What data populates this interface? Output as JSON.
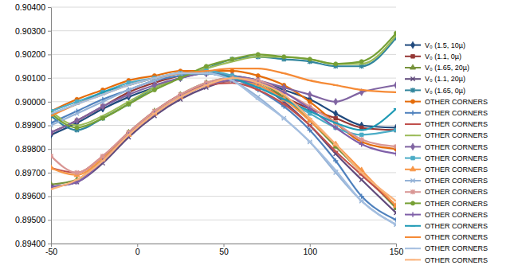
{
  "chart_data": {
    "type": "line",
    "x": [
      -50,
      -35,
      -20,
      -5,
      10,
      25,
      40,
      55,
      70,
      85,
      100,
      115,
      130,
      150
    ],
    "xlim": [
      -50,
      150
    ],
    "xticks": [
      -50,
      0,
      50,
      100,
      150
    ],
    "ylim": [
      0.894,
      0.904
    ],
    "yticks": [
      {
        "value": 0.894,
        "label": "0.89400"
      },
      {
        "value": 0.895,
        "label": "0.89500"
      },
      {
        "value": 0.896,
        "label": "0.89600"
      },
      {
        "value": 0.897,
        "label": "0.89700"
      },
      {
        "value": 0.898,
        "label": "0.89800"
      },
      {
        "value": 0.899,
        "label": "0.89900"
      },
      {
        "value": 0.9,
        "label": "0.90000"
      },
      {
        "value": 0.901,
        "label": "0.90100"
      },
      {
        "value": 0.902,
        "label": "0.90200"
      },
      {
        "value": 0.903,
        "label": "0.90300"
      },
      {
        "value": 0.904,
        "label": "0.90400"
      }
    ],
    "grid": true,
    "legend": "right",
    "series": [
      {
        "name": "V₀ (1.5, 10µ)",
        "color": "#1f497d",
        "marker": "diamond",
        "values": [
          0.8986,
          0.8991,
          0.8997,
          0.9002,
          0.9006,
          0.901,
          0.9012,
          0.9011,
          0.9009,
          0.9005,
          0.9001,
          0.8995,
          0.899,
          0.8989
        ]
      },
      {
        "name": "V₀ (1.1, 0µ)",
        "color": "#953735",
        "marker": "square",
        "values": [
          0.8987,
          0.8992,
          0.8998,
          0.9004,
          0.9008,
          0.9011,
          0.9012,
          0.901,
          0.9007,
          0.9002,
          0.8997,
          0.8993,
          0.8989,
          0.8988
        ]
      },
      {
        "name": "V₀ (1.65, 20µ)",
        "color": "#77933c",
        "marker": "triangle",
        "values": [
          0.8965,
          0.8967,
          0.8976,
          0.8987,
          0.8996,
          0.9003,
          0.9008,
          0.901,
          0.9008,
          0.9002,
          0.8992,
          0.8981,
          0.897,
          0.8955
        ]
      },
      {
        "name": "V₀ (1.1, 20µ)",
        "color": "#604a7b",
        "marker": "x",
        "values": [
          0.8964,
          0.8966,
          0.8974,
          0.8985,
          0.8994,
          0.9001,
          0.9006,
          0.9009,
          0.9007,
          0.9,
          0.899,
          0.8978,
          0.8967,
          0.8953
        ]
      },
      {
        "name": "V₀ (1.65, 0µ)",
        "color": "#31859c",
        "marker": "asterisk",
        "values": [
          0.8994,
          0.8988,
          0.8993,
          0.8999,
          0.9006,
          0.901,
          0.9014,
          0.9018,
          0.9019,
          0.9018,
          0.9017,
          0.9015,
          0.9015,
          0.9027
        ]
      },
      {
        "name": "OTHER CORNERS",
        "color": "#e46c0a",
        "marker": "circle",
        "values": [
          0.8996,
          0.9001,
          0.9005,
          0.9009,
          0.9011,
          0.9013,
          0.9013,
          0.9013,
          0.9011,
          0.9007,
          0.9,
          0.8991,
          0.8983,
          0.898
        ]
      },
      {
        "name": "OTHER CORNERS",
        "color": "#4f81bd",
        "marker": "plus",
        "values": [
          0.8991,
          0.8996,
          0.9001,
          0.9005,
          0.9009,
          0.9011,
          0.9012,
          0.901,
          0.9005,
          0.8998,
          0.8988,
          0.8975,
          0.896,
          0.895
        ]
      },
      {
        "name": "OTHER CORNERS",
        "color": "#c0504d",
        "marker": "dash",
        "values": [
          0.8972,
          0.897,
          0.8977,
          0.8987,
          0.8996,
          0.9003,
          0.9007,
          0.9008,
          0.9005,
          0.8999,
          0.899,
          0.8979,
          0.8969,
          0.8956
        ]
      },
      {
        "name": "OTHER CORNERS",
        "color": "#9bbb59",
        "marker": "dash",
        "values": [
          0.8996,
          0.899,
          0.8994,
          0.9,
          0.9006,
          0.901,
          0.9014,
          0.9017,
          0.9019,
          0.9019,
          0.9018,
          0.9016,
          0.9016,
          0.9028
        ]
      },
      {
        "name": "OTHER CORNERS",
        "color": "#8064a2",
        "marker": "diamond",
        "values": [
          0.8987,
          0.8992,
          0.8998,
          0.9003,
          0.9007,
          0.901,
          0.9012,
          0.9011,
          0.9009,
          0.9006,
          0.9003,
          0.9,
          0.9004,
          0.9007
        ]
      },
      {
        "name": "OTHER CORNERS",
        "color": "#4bacc6",
        "marker": "square",
        "values": [
          0.8996,
          0.9,
          0.9004,
          0.9008,
          0.901,
          0.9012,
          0.9013,
          0.9011,
          0.9007,
          0.9001,
          0.8995,
          0.8989,
          0.8986,
          0.8988
        ]
      },
      {
        "name": "OTHER CORNERS",
        "color": "#f79646",
        "marker": "triangle",
        "values": [
          0.8972,
          0.8969,
          0.8976,
          0.8986,
          0.8995,
          0.9002,
          0.9007,
          0.9009,
          0.9007,
          0.9001,
          0.8992,
          0.8982,
          0.8971,
          0.8956
        ]
      },
      {
        "name": "OTHER CORNERS",
        "color": "#95b3d7",
        "marker": "x",
        "values": [
          0.899,
          0.8995,
          0.9,
          0.9005,
          0.9009,
          0.9012,
          0.9012,
          0.9009,
          0.9002,
          0.8993,
          0.8983,
          0.897,
          0.8958,
          0.8948
        ]
      },
      {
        "name": "OTHER CORNERS",
        "color": "#d99694",
        "marker": "asterisk",
        "values": [
          0.8977,
          0.897,
          0.8977,
          0.8987,
          0.8996,
          0.9003,
          0.9008,
          0.901,
          0.9009,
          0.9004,
          0.8998,
          0.8991,
          0.8984,
          0.8981
        ]
      },
      {
        "name": "OTHER CORNERS",
        "color": "#76a035",
        "marker": "circle",
        "values": [
          0.8995,
          0.8989,
          0.8993,
          0.8999,
          0.9005,
          0.901,
          0.9015,
          0.9018,
          0.902,
          0.9019,
          0.9018,
          0.9016,
          0.9017,
          0.9029
        ]
      },
      {
        "name": "OTHER CORNERS",
        "color": "#7f5fa8",
        "marker": "plus",
        "values": [
          0.8964,
          0.8966,
          0.8975,
          0.8986,
          0.8995,
          0.9002,
          0.9007,
          0.9009,
          0.9008,
          0.9004,
          0.8997,
          0.8989,
          0.8982,
          0.8978
        ]
      },
      {
        "name": "OTHER CORNERS",
        "color": "#1f9ab5",
        "marker": "dash",
        "values": [
          0.8995,
          0.8999,
          0.9004,
          0.9007,
          0.901,
          0.9012,
          0.9012,
          0.901,
          0.9006,
          0.9001,
          0.8996,
          0.8991,
          0.8988,
          0.8997
        ]
      },
      {
        "name": "OTHER CORNERS",
        "color": "#f58a36",
        "marker": "dash",
        "values": [
          0.8994,
          0.8999,
          0.9003,
          0.9007,
          0.901,
          0.9012,
          0.9013,
          0.9014,
          0.9014,
          0.9012,
          0.9009,
          0.9007,
          0.9005,
          0.9004
        ]
      },
      {
        "name": "OTHER CORNERS",
        "color": "#a5bfe0",
        "marker": "dash",
        "values": [
          0.8995,
          0.8999,
          0.9003,
          0.9007,
          0.901,
          0.9012,
          0.9012,
          0.9009,
          0.9001,
          0.8993,
          0.8983,
          0.8971,
          0.8958,
          0.8948
        ]
      },
      {
        "name": "OTHER CORNERS",
        "color": "#fab27a",
        "marker": "dash",
        "values": [
          0.8963,
          0.8967,
          0.8975,
          0.8986,
          0.8995,
          0.9002,
          0.9007,
          0.901,
          0.9008,
          0.9003,
          0.8993,
          0.8982,
          0.897,
          0.8958
        ]
      }
    ]
  }
}
